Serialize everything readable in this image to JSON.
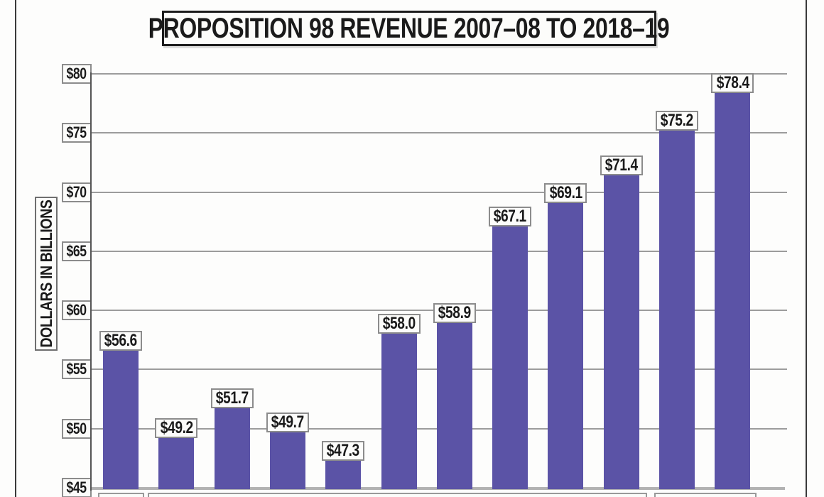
{
  "chart_data": {
    "type": "bar",
    "title": "PROPOSITION 98 REVENUE 2007–08 TO 2018–19",
    "ylabel": "DOLLARS IN BILLIONS",
    "values": [
      56.6,
      49.2,
      51.7,
      49.7,
      47.3,
      58.0,
      58.9,
      67.1,
      69.1,
      71.4,
      75.2,
      78.4
    ],
    "bar_labels": [
      "$56.6",
      "$49.2",
      "$51.7",
      "$49.7",
      "$47.3",
      "$58.0",
      "$58.9",
      "$67.1",
      "$69.1",
      "$71.4",
      "$75.2",
      "$78.4"
    ],
    "ytick_labels": [
      "$80",
      "$75",
      "$70",
      "$65",
      "$60",
      "$55",
      "$50",
      "$45"
    ],
    "ytick_values": [
      80,
      75,
      70,
      65,
      60,
      55,
      50,
      45
    ],
    "ylim": [
      45,
      80
    ],
    "grid": true,
    "legend": false,
    "colors": {
      "bar": "#5b53a6",
      "gridline": "#9c9c9c",
      "baseline": "#b2b2b2",
      "frame": "#3a3a3a"
    }
  }
}
